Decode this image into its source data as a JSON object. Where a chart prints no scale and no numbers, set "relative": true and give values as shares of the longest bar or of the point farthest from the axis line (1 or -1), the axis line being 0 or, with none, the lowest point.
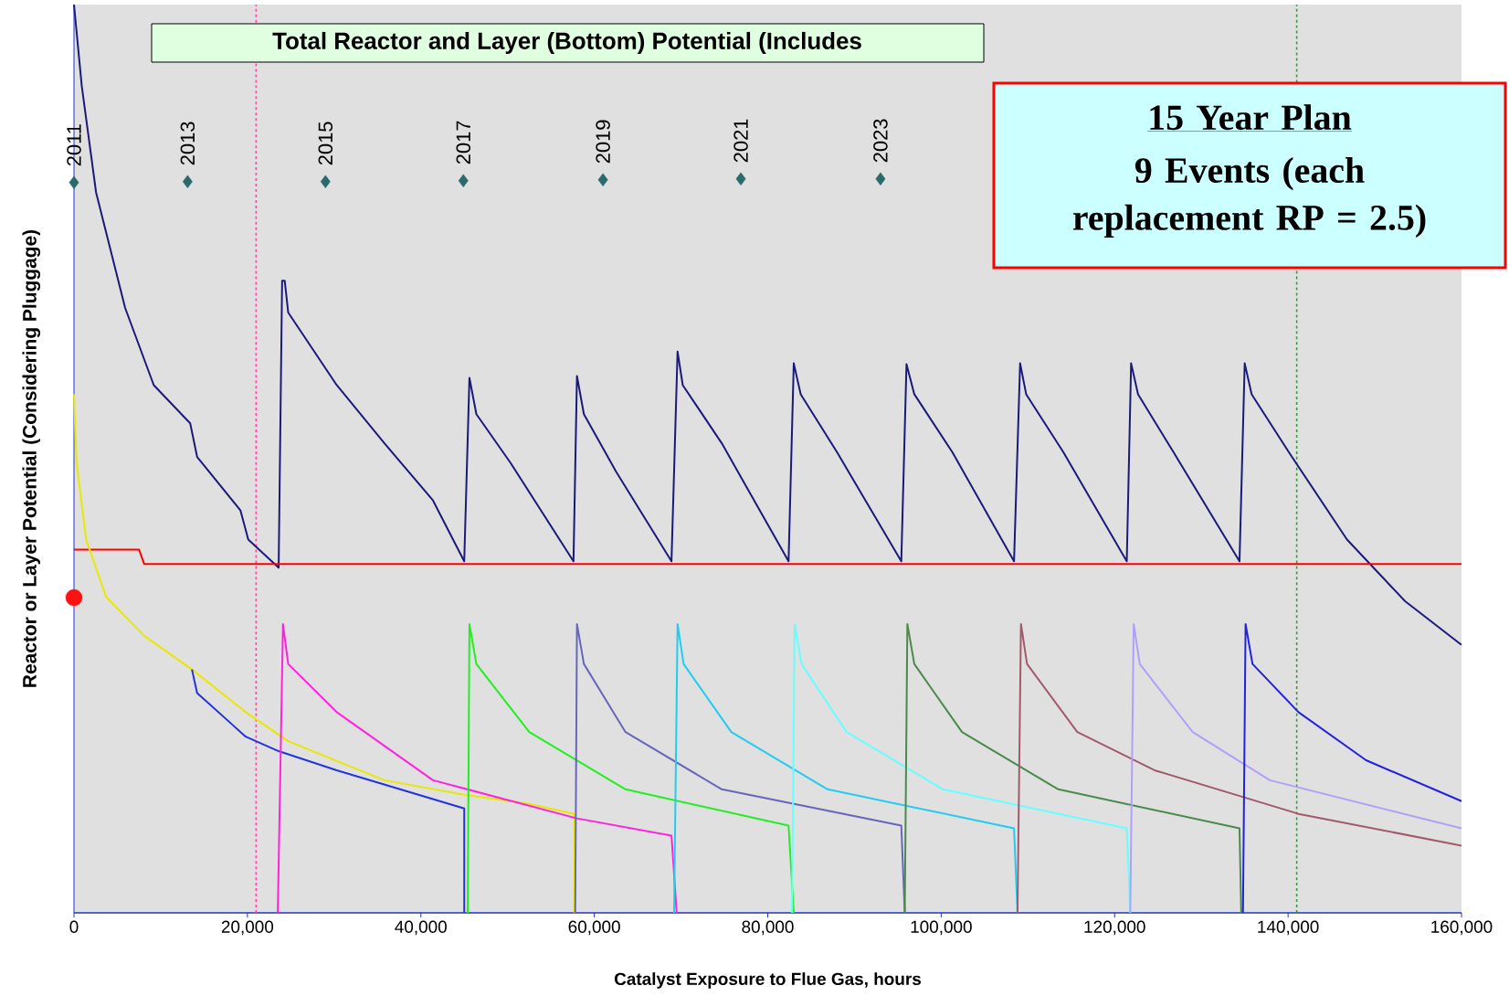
{
  "chart_data": {
    "type": "line",
    "relative": true,
    "title": "Total Reactor and Layer (Bottom) Potential (Includes",
    "xlabel": "Catalyst Exposure to Flue Gas, hours",
    "ylabel": "Reactor or Layer Potential (Considering Pluggage)",
    "xlim": [
      0,
      160000
    ],
    "xticks": [
      0,
      {
        "value": 20000,
        "label": "20,000"
      },
      {
        "value": 40000,
        "label": "40,000"
      },
      {
        "value": 60000,
        "label": "60,000"
      },
      {
        "value": 80000,
        "label": "80,000"
      },
      {
        "value": 100000,
        "label": "100,000"
      },
      {
        "value": 120000,
        "label": "120,000"
      },
      {
        "value": 140000,
        "label": "140,000"
      },
      {
        "value": 160000,
        "label": "160,000"
      }
    ],
    "ref_lines": [
      {
        "axis": "x",
        "value": 21000,
        "color": "#ff44aa",
        "line_style": "dashed"
      },
      {
        "axis": "x",
        "value": 141000,
        "color": "#22aa22",
        "line_style": "dashed"
      }
    ],
    "annotations": [
      {
        "text": "2011",
        "x": 0,
        "y": 0.804
      },
      {
        "text": "2013",
        "x": 13100,
        "y": 0.805
      },
      {
        "text": "2015",
        "x": 29000,
        "y": 0.805
      },
      {
        "text": "2017",
        "x": 44900,
        "y": 0.806
      },
      {
        "text": "2019",
        "x": 61000,
        "y": 0.807
      },
      {
        "text": "2021",
        "x": 76900,
        "y": 0.808
      },
      {
        "text": "2023",
        "x": 93000,
        "y": 0.808
      },
      "15 Year Plan",
      "9 Events (each replacement RP = 2.5)"
    ],
    "series": [
      {
        "type": "line",
        "color": "#1a1a7a",
        "x": [
          0,
          900,
          2550,
          5900,
          9200,
          13400,
          14200,
          19200,
          20100,
          23600,
          24000,
          24300,
          24700,
          30300,
          35800,
          41400,
          45000,
          45600,
          46400,
          50300,
          57600,
          58000,
          58800,
          62500,
          68900,
          69600,
          70200,
          74700,
          82400,
          83000,
          83800,
          88000,
          95400,
          96000,
          96900,
          101300,
          108400,
          109100,
          109800,
          114100,
          121400,
          121900,
          122700,
          126800,
          134400,
          135000,
          135800,
          140100,
          146800,
          153500,
          160000
        ],
        "values": [
          1.0,
          0.91,
          0.793,
          0.666,
          0.581,
          0.539,
          0.502,
          0.443,
          0.411,
          0.38,
          0.696,
          0.696,
          0.661,
          0.581,
          0.517,
          0.454,
          0.387,
          0.589,
          0.549,
          0.496,
          0.387,
          0.591,
          0.549,
          0.486,
          0.387,
          0.618,
          0.581,
          0.517,
          0.387,
          0.605,
          0.571,
          0.507,
          0.387,
          0.604,
          0.571,
          0.507,
          0.387,
          0.605,
          0.571,
          0.507,
          0.387,
          0.605,
          0.571,
          0.507,
          0.387,
          0.605,
          0.571,
          0.507,
          0.411,
          0.343,
          0.295
        ]
      },
      {
        "type": "line",
        "color": "#ff0000",
        "x": [
          0,
          7500,
          8100,
          160000
        ],
        "values": [
          0.4,
          0.4,
          0.384,
          0.384
        ]
      },
      {
        "type": "line",
        "color": "#e8e800",
        "x": [
          0,
          300,
          1400,
          3700,
          8100,
          13600,
          19800,
          24700,
          35800,
          45000,
          52500,
          57700,
          57700
        ],
        "values": [
          0.571,
          0.496,
          0.411,
          0.348,
          0.305,
          0.268,
          0.221,
          0.189,
          0.146,
          0.13,
          0.12,
          0.109,
          0
        ]
      },
      {
        "type": "line",
        "color": "#2233dd",
        "x": [
          13600,
          14200,
          19800,
          23600,
          30300,
          45000,
          45000
        ],
        "values": [
          0.268,
          0.242,
          0.194,
          0.178,
          0.157,
          0.115,
          0
        ]
      },
      {
        "type": "line",
        "color": "#ff22dd",
        "x": [
          23500,
          24100,
          24700,
          30300,
          41400,
          58000,
          68900,
          69500
        ],
        "values": [
          0,
          0.318,
          0.274,
          0.221,
          0.146,
          0.104,
          0.085,
          0
        ]
      },
      {
        "type": "line",
        "color": "#22ee22",
        "x": [
          45400,
          45600,
          46400,
          52500,
          63600,
          82400,
          83000
        ],
        "values": [
          0,
          0.318,
          0.274,
          0.199,
          0.136,
          0.096,
          0
        ]
      },
      {
        "type": "line",
        "color": "#6666bb",
        "x": [
          57800,
          58000,
          58800,
          63600,
          74700,
          95400,
          95800
        ],
        "values": [
          0,
          0.318,
          0.274,
          0.199,
          0.136,
          0.096,
          0
        ]
      },
      {
        "type": "line",
        "color": "#22ccf0",
        "x": [
          69200,
          69600,
          70300,
          75800,
          86900,
          108400,
          108800
        ],
        "values": [
          0,
          0.318,
          0.274,
          0.199,
          0.136,
          0.093,
          0
        ]
      },
      {
        "type": "line",
        "color": "#66ffff",
        "x": [
          82800,
          83100,
          83900,
          89100,
          100200,
          121400,
          121800
        ],
        "values": [
          0,
          0.318,
          0.274,
          0.199,
          0.136,
          0.093,
          0
        ]
      },
      {
        "type": "line",
        "color": "#4a8a4a",
        "x": [
          95800,
          96100,
          96900,
          102400,
          113500,
          134400,
          134600
        ],
        "values": [
          0,
          0.318,
          0.274,
          0.199,
          0.136,
          0.093,
          0
        ]
      },
      {
        "type": "line",
        "color": "#a05a6a",
        "x": [
          108800,
          109200,
          109900,
          115700,
          124600,
          141200,
          160000
        ],
        "values": [
          0,
          0.318,
          0.274,
          0.199,
          0.157,
          0.109,
          0.074
        ]
      },
      {
        "type": "line",
        "color": "#b0a0f8",
        "x": [
          121800,
          122200,
          122900,
          129000,
          137900,
          160000
        ],
        "values": [
          0,
          0.318,
          0.274,
          0.199,
          0.146,
          0.093
        ]
      },
      {
        "type": "line",
        "color": "#2222dd",
        "x": [
          134800,
          135100,
          135900,
          141200,
          149000,
          160000
        ],
        "values": [
          0,
          0.318,
          0.274,
          0.221,
          0.168,
          0.123
        ]
      },
      {
        "type": "scatter",
        "marker": "circle",
        "color": "#ff1111",
        "x": [
          0
        ],
        "values": [
          0.347
        ]
      },
      {
        "type": "scatter",
        "marker": "diamond",
        "color": "#2a6a6a",
        "x": [
          0,
          13100,
          29000,
          44900,
          61000,
          76900,
          93000
        ],
        "values": [
          0.804,
          0.805,
          0.805,
          0.806,
          0.807,
          0.808,
          0.808
        ]
      }
    ]
  }
}
